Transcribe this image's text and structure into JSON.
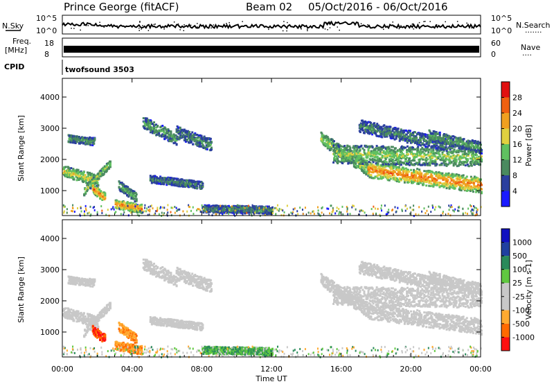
{
  "header": {
    "station": "Prince George (fitACF)",
    "beam": "Beam 02",
    "date_range": "05/Oct/2016 - 06/Oct/2016"
  },
  "top_panels": {
    "nsky_label": "N.Sky",
    "nsearch_label": "N.Search",
    "nsky_ticks": [
      "10^5",
      "10^0"
    ],
    "nsearch_ticks": [
      "10^5",
      "10^0"
    ],
    "freq_label_line1": "Freq.",
    "freq_label_line2": "[MHz]",
    "freq_ticks": [
      "18",
      "8"
    ],
    "nave_label": "Nave",
    "nave_ticks": [
      "60",
      "0"
    ],
    "cpid_label": "CPID",
    "cpid_text": "twofsound 3503"
  },
  "colors": {
    "power_scale": [
      "#1a1aff",
      "#2b3f9e",
      "#4a8a5f",
      "#60c060",
      "#e0d040",
      "#f0a020",
      "#f06010",
      "#e01010"
    ],
    "velocity_scale": [
      "#ff1010",
      "#ff6a00",
      "#ffaa30",
      "#c8c8c8",
      "#c8c8c8",
      "#60c840",
      "#2a8a5a",
      "#2040a0",
      "#1010c0"
    ]
  },
  "chart_data": [
    {
      "type": "heatmap",
      "name": "power",
      "ylabel": "Slant Range [km]",
      "yticks": [
        "1000",
        "2000",
        "3000",
        "4000"
      ],
      "ylim": [
        200,
        4600
      ],
      "colorbar_label": "Power [dB]",
      "colorbar_ticks": [
        "4",
        "8",
        "12",
        "16",
        "20",
        "24",
        "28"
      ],
      "colorbar_range": [
        0,
        32
      ]
    },
    {
      "type": "heatmap",
      "name": "velocity",
      "ylabel": "Slant Range [km]",
      "yticks": [
        "1000",
        "2000",
        "3000",
        "4000"
      ],
      "ylim": [
        200,
        4600
      ],
      "colorbar_label": "Velocity [m s-1]",
      "colorbar_ticks": [
        "1000",
        "500",
        "100",
        "25",
        "-25",
        "-100",
        "-500",
        "-1000"
      ]
    }
  ],
  "x_axis": {
    "ticks": [
      "00:00",
      "04:00",
      "08:00",
      "12:00",
      "16:00",
      "20:00",
      "00:00"
    ],
    "label": "Time UT",
    "range_hours": [
      0,
      24
    ]
  }
}
